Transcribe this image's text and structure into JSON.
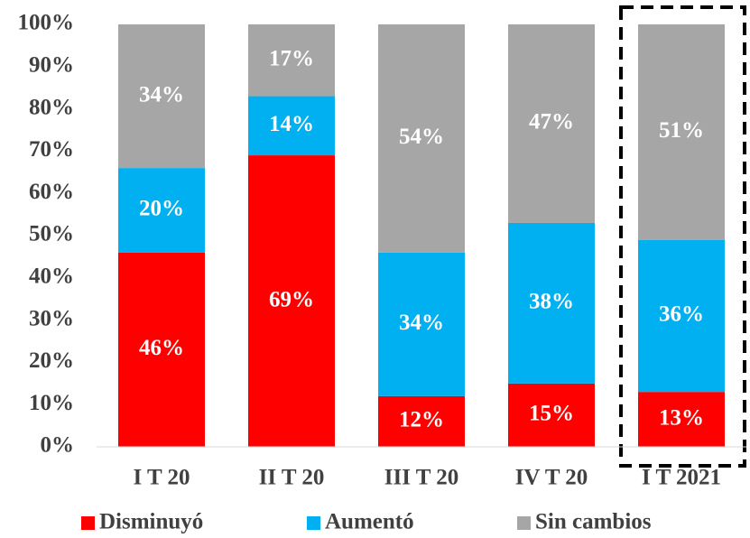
{
  "chart_data": {
    "type": "stacked_bar",
    "categories": [
      "I T 20",
      "II T 20",
      "III T 20",
      "IV T 20",
      "I T 2021"
    ],
    "series": [
      {
        "name": "Disminuyó",
        "color": "#ff0000",
        "values": [
          46,
          69,
          12,
          15,
          13
        ],
        "value_labels": [
          "46%",
          "69%",
          "12%",
          "15%",
          "13%"
        ]
      },
      {
        "name": "Aumentó",
        "color": "#00b0f0",
        "values": [
          20,
          14,
          34,
          38,
          36
        ],
        "value_labels": [
          "20%",
          "14%",
          "34%",
          "38%",
          "36%"
        ]
      },
      {
        "name": "Sin cambios",
        "color": "#a6a6a6",
        "values": [
          34,
          17,
          54,
          47,
          51
        ],
        "value_labels": [
          "34%",
          "17%",
          "54%",
          "47%",
          "51%"
        ]
      }
    ],
    "ylim": [
      0,
      100
    ],
    "yticks": [
      {
        "value": 0,
        "label": "0%"
      },
      {
        "value": 10,
        "label": "10%"
      },
      {
        "value": 20,
        "label": "20%"
      },
      {
        "value": 30,
        "label": "30%"
      },
      {
        "value": 40,
        "label": "40%"
      },
      {
        "value": 50,
        "label": "50%"
      },
      {
        "value": 60,
        "label": "60%"
      },
      {
        "value": 70,
        "label": "70%"
      },
      {
        "value": 80,
        "label": "80%"
      },
      {
        "value": 90,
        "label": "90%"
      },
      {
        "value": 100,
        "label": "100%"
      }
    ],
    "grid": false,
    "legend": "bottom"
  }
}
